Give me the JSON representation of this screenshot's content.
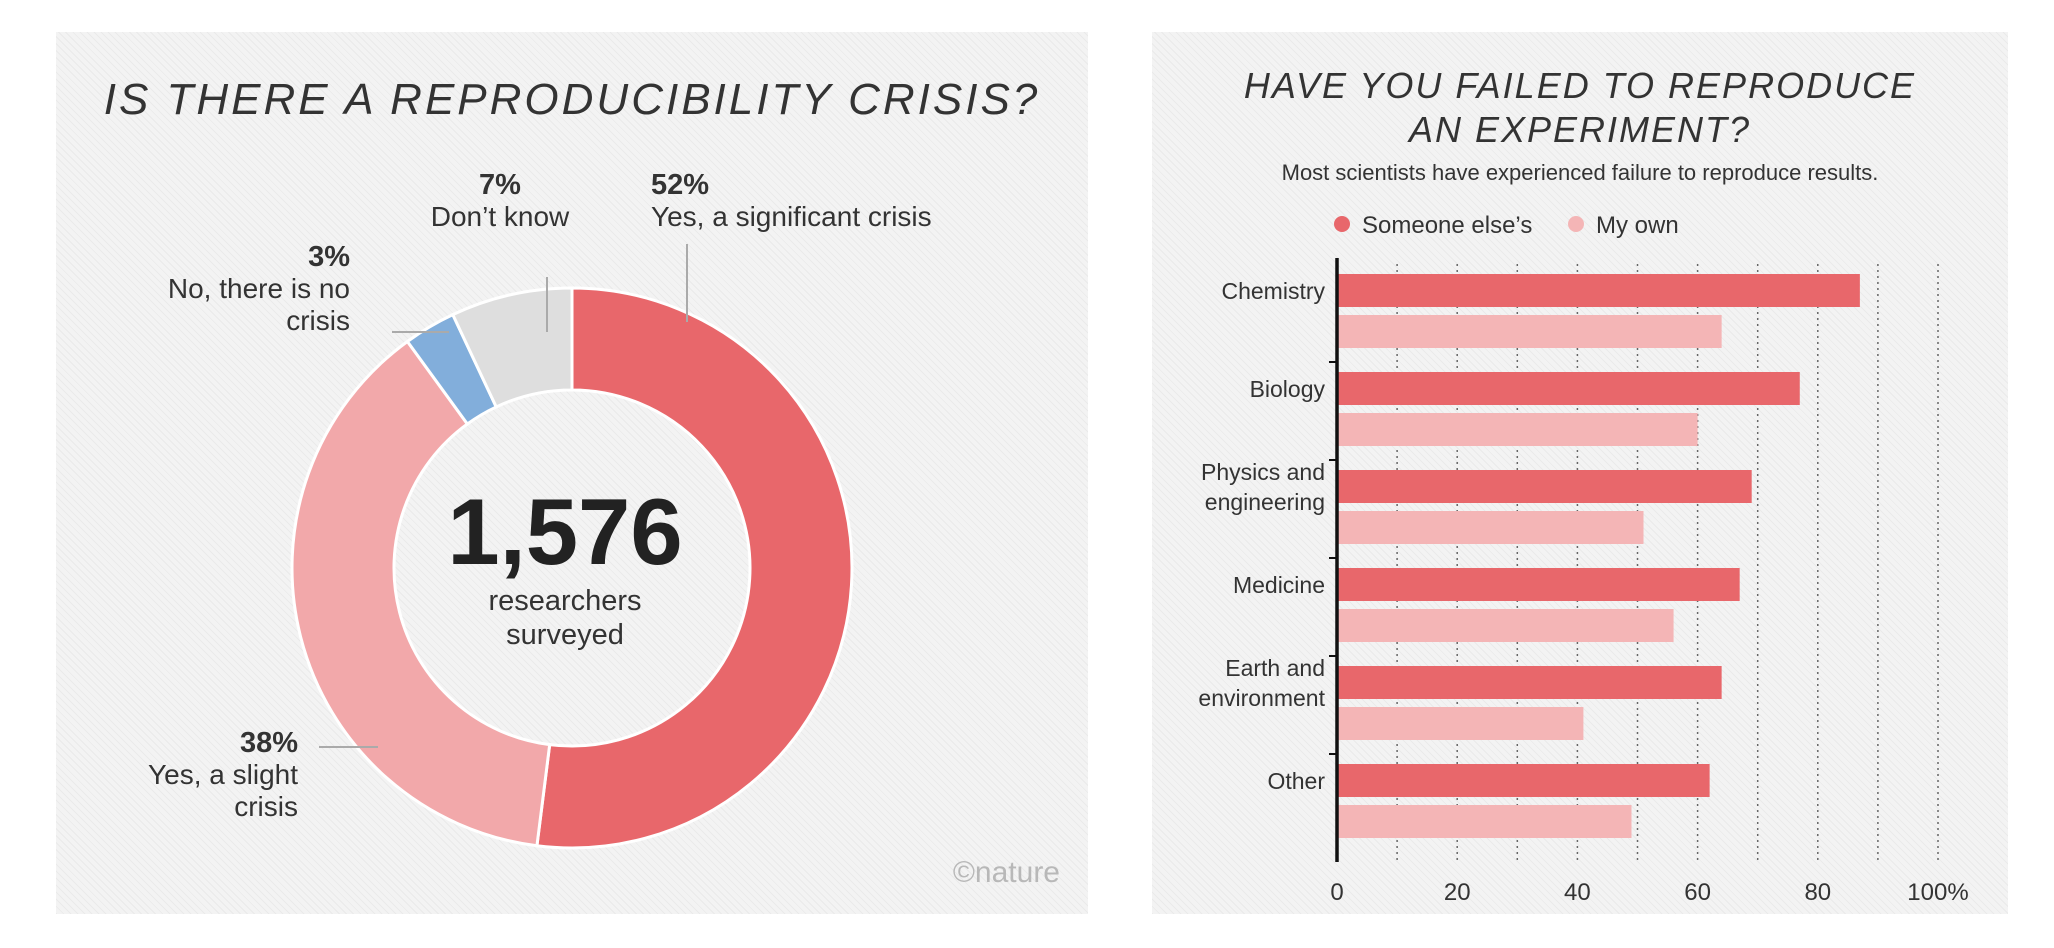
{
  "colors": {
    "significant": "#e8676b",
    "slight": "#f2a8aa",
    "none": "#82aedb",
    "dont_know": "#dedede",
    "someone_else": "#e8676b",
    "my_own": "#f4b5b6"
  },
  "chart_data": [
    {
      "type": "pie",
      "title": "IS THERE A REPRODUCIBILITY CRISIS?",
      "center_value": "1,576",
      "center_label_lines": [
        "researchers",
        "surveyed"
      ],
      "slices": [
        {
          "key": "significant",
          "percent_label": "52%",
          "label_lines": [
            "Yes, a significant crisis"
          ],
          "value": 52
        },
        {
          "key": "slight",
          "percent_label": "38%",
          "label_lines": [
            "Yes, a slight",
            "crisis"
          ],
          "value": 38
        },
        {
          "key": "none",
          "percent_label": "3%",
          "label_lines": [
            "No, there is no",
            "crisis"
          ],
          "value": 3
        },
        {
          "key": "dont_know",
          "percent_label": "7%",
          "label_lines": [
            "Don’t know"
          ],
          "value": 7
        }
      ],
      "credit": "©nature"
    },
    {
      "type": "bar",
      "orientation": "horizontal",
      "title_lines": [
        "HAVE YOU FAILED TO REPRODUCE",
        "AN EXPERIMENT?"
      ],
      "subtitle": "Most scientists have experienced failure to reproduce results.",
      "legend_position": "top",
      "categories": [
        [
          "Chemistry"
        ],
        [
          "Biology"
        ],
        [
          "Physics and",
          "engineering"
        ],
        [
          "Medicine"
        ],
        [
          "Earth and",
          "environment"
        ],
        [
          "Other"
        ]
      ],
      "series": [
        {
          "name": "Someone else’s",
          "color_key": "someone_else",
          "values": [
            87,
            77,
            69,
            67,
            64,
            62
          ]
        },
        {
          "name": "My own",
          "color_key": "my_own",
          "values": [
            64,
            60,
            51,
            56,
            41,
            49
          ]
        }
      ],
      "xlim": [
        0,
        100
      ],
      "x_ticks": [
        0,
        20,
        40,
        60,
        80,
        100
      ],
      "x_tick_labels": [
        "0",
        "20",
        "40",
        "60",
        "80",
        "100%"
      ],
      "grid": "dotted vertical every 10"
    }
  ]
}
